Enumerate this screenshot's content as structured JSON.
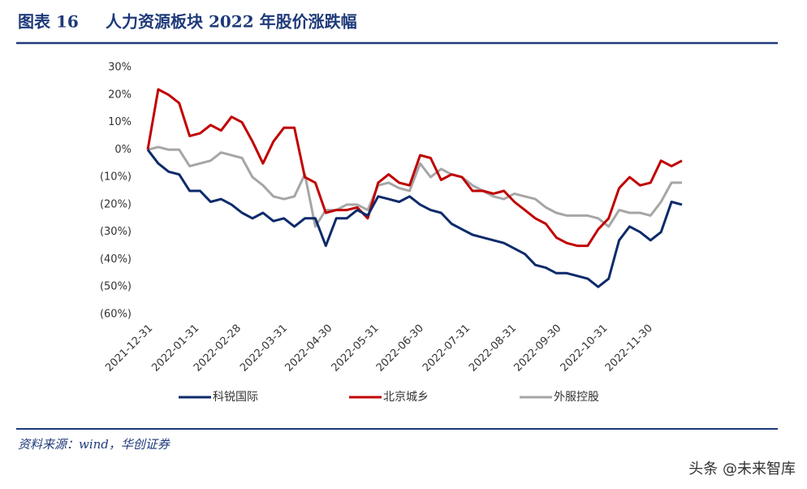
{
  "chart_data": {
    "type": "line",
    "figure_label": "图表 16",
    "title": "人力资源板块 2022 年股价涨跌幅",
    "x": [
      "2021-12-31",
      "2022-01-07",
      "2022-01-14",
      "2022-01-21",
      "2022-01-28",
      "2022-02-04",
      "2022-02-11",
      "2022-02-18",
      "2022-02-25",
      "2022-03-04",
      "2022-03-11",
      "2022-03-18",
      "2022-03-25",
      "2022-04-01",
      "2022-04-08",
      "2022-04-15",
      "2022-04-22",
      "2022-04-29",
      "2022-05-06",
      "2022-05-13",
      "2022-05-20",
      "2022-05-27",
      "2022-06-03",
      "2022-06-10",
      "2022-06-17",
      "2022-06-24",
      "2022-07-01",
      "2022-07-08",
      "2022-07-15",
      "2022-07-22",
      "2022-07-29",
      "2022-08-05",
      "2022-08-12",
      "2022-08-19",
      "2022-08-26",
      "2022-09-02",
      "2022-09-09",
      "2022-09-16",
      "2022-09-23",
      "2022-09-30",
      "2022-10-07",
      "2022-10-14",
      "2022-10-21",
      "2022-10-28",
      "2022-11-04",
      "2022-11-11",
      "2022-11-18",
      "2022-11-25",
      "2022-12-02",
      "2022-12-09",
      "2022-12-16",
      "2022-12-23"
    ],
    "series": [
      {
        "name": "科锐国际",
        "color": "#0d2a6b",
        "values": [
          0,
          -5,
          -8,
          -9,
          -15,
          -15,
          -19,
          -18,
          -20,
          -23,
          -25,
          -23,
          -26,
          -25,
          -28,
          -25,
          -25,
          -35,
          -25,
          -25,
          -22,
          -24,
          -17,
          -18,
          -19,
          -17,
          -20,
          -22,
          -23,
          -27,
          -29,
          -31,
          -32,
          -33,
          -34,
          -36,
          -38,
          -42,
          -43,
          -45,
          -45,
          -46,
          -47,
          -50,
          -47,
          -33,
          -28,
          -30,
          -33,
          -30,
          -19,
          -20
        ]
      },
      {
        "name": "北京城乡",
        "color": "#c00000",
        "values": [
          0,
          22,
          20,
          17,
          5,
          6,
          9,
          7,
          12,
          10,
          3,
          -5,
          3,
          8,
          8,
          -10,
          -12,
          -23,
          -22,
          -22,
          -21,
          -25,
          -12,
          -9,
          -12,
          -13,
          -2,
          -3,
          -11,
          -9,
          -10,
          -15,
          -15,
          -16,
          -15,
          -19,
          -22,
          -25,
          -27,
          -32,
          -34,
          -35,
          -35,
          -29,
          -25,
          -14,
          -10,
          -13,
          -12,
          -4,
          -6,
          -4
        ]
      },
      {
        "name": "外服控股",
        "color": "#a6a6a6",
        "values": [
          0,
          1,
          0,
          0,
          -6,
          -5,
          -4,
          -1,
          -2,
          -3,
          -10,
          -13,
          -17,
          -18,
          -17,
          -9,
          -28,
          -22,
          -22,
          -20,
          -20,
          -22,
          -13,
          -12,
          -14,
          -15,
          -5,
          -10,
          -7,
          -9,
          -10,
          -13,
          -15,
          -17,
          -18,
          -16,
          -17,
          -18,
          -21,
          -23,
          -24,
          -24,
          -24,
          -25,
          -28,
          -22,
          -23,
          -23,
          -24,
          -19,
          -12,
          -12
        ]
      }
    ],
    "ylim": [
      -60,
      30
    ],
    "yticks": [
      {
        "value": 30,
        "label": "30%"
      },
      {
        "value": 20,
        "label": "20%"
      },
      {
        "value": 10,
        "label": "10%"
      },
      {
        "value": 0,
        "label": "0%"
      },
      {
        "value": -10,
        "label": "(10%)"
      },
      {
        "value": -20,
        "label": "(20%)"
      },
      {
        "value": -30,
        "label": "(30%)"
      },
      {
        "value": -40,
        "label": "(40%)"
      },
      {
        "value": -50,
        "label": "(50%)"
      },
      {
        "value": -60,
        "label": "(60%)"
      }
    ],
    "xlim": [
      "2021-12-31",
      "2022-12-23"
    ],
    "xticks": [
      "2021-12-31",
      "2022-01-31",
      "2022-02-28",
      "2022-03-31",
      "2022-04-30",
      "2022-05-31",
      "2022-06-30",
      "2022-07-31",
      "2022-08-31",
      "2022-09-30",
      "2022-10-31",
      "2022-11-30"
    ],
    "source": "资料来源：wind，华创证券",
    "watermark": "头条 @未来智库"
  }
}
